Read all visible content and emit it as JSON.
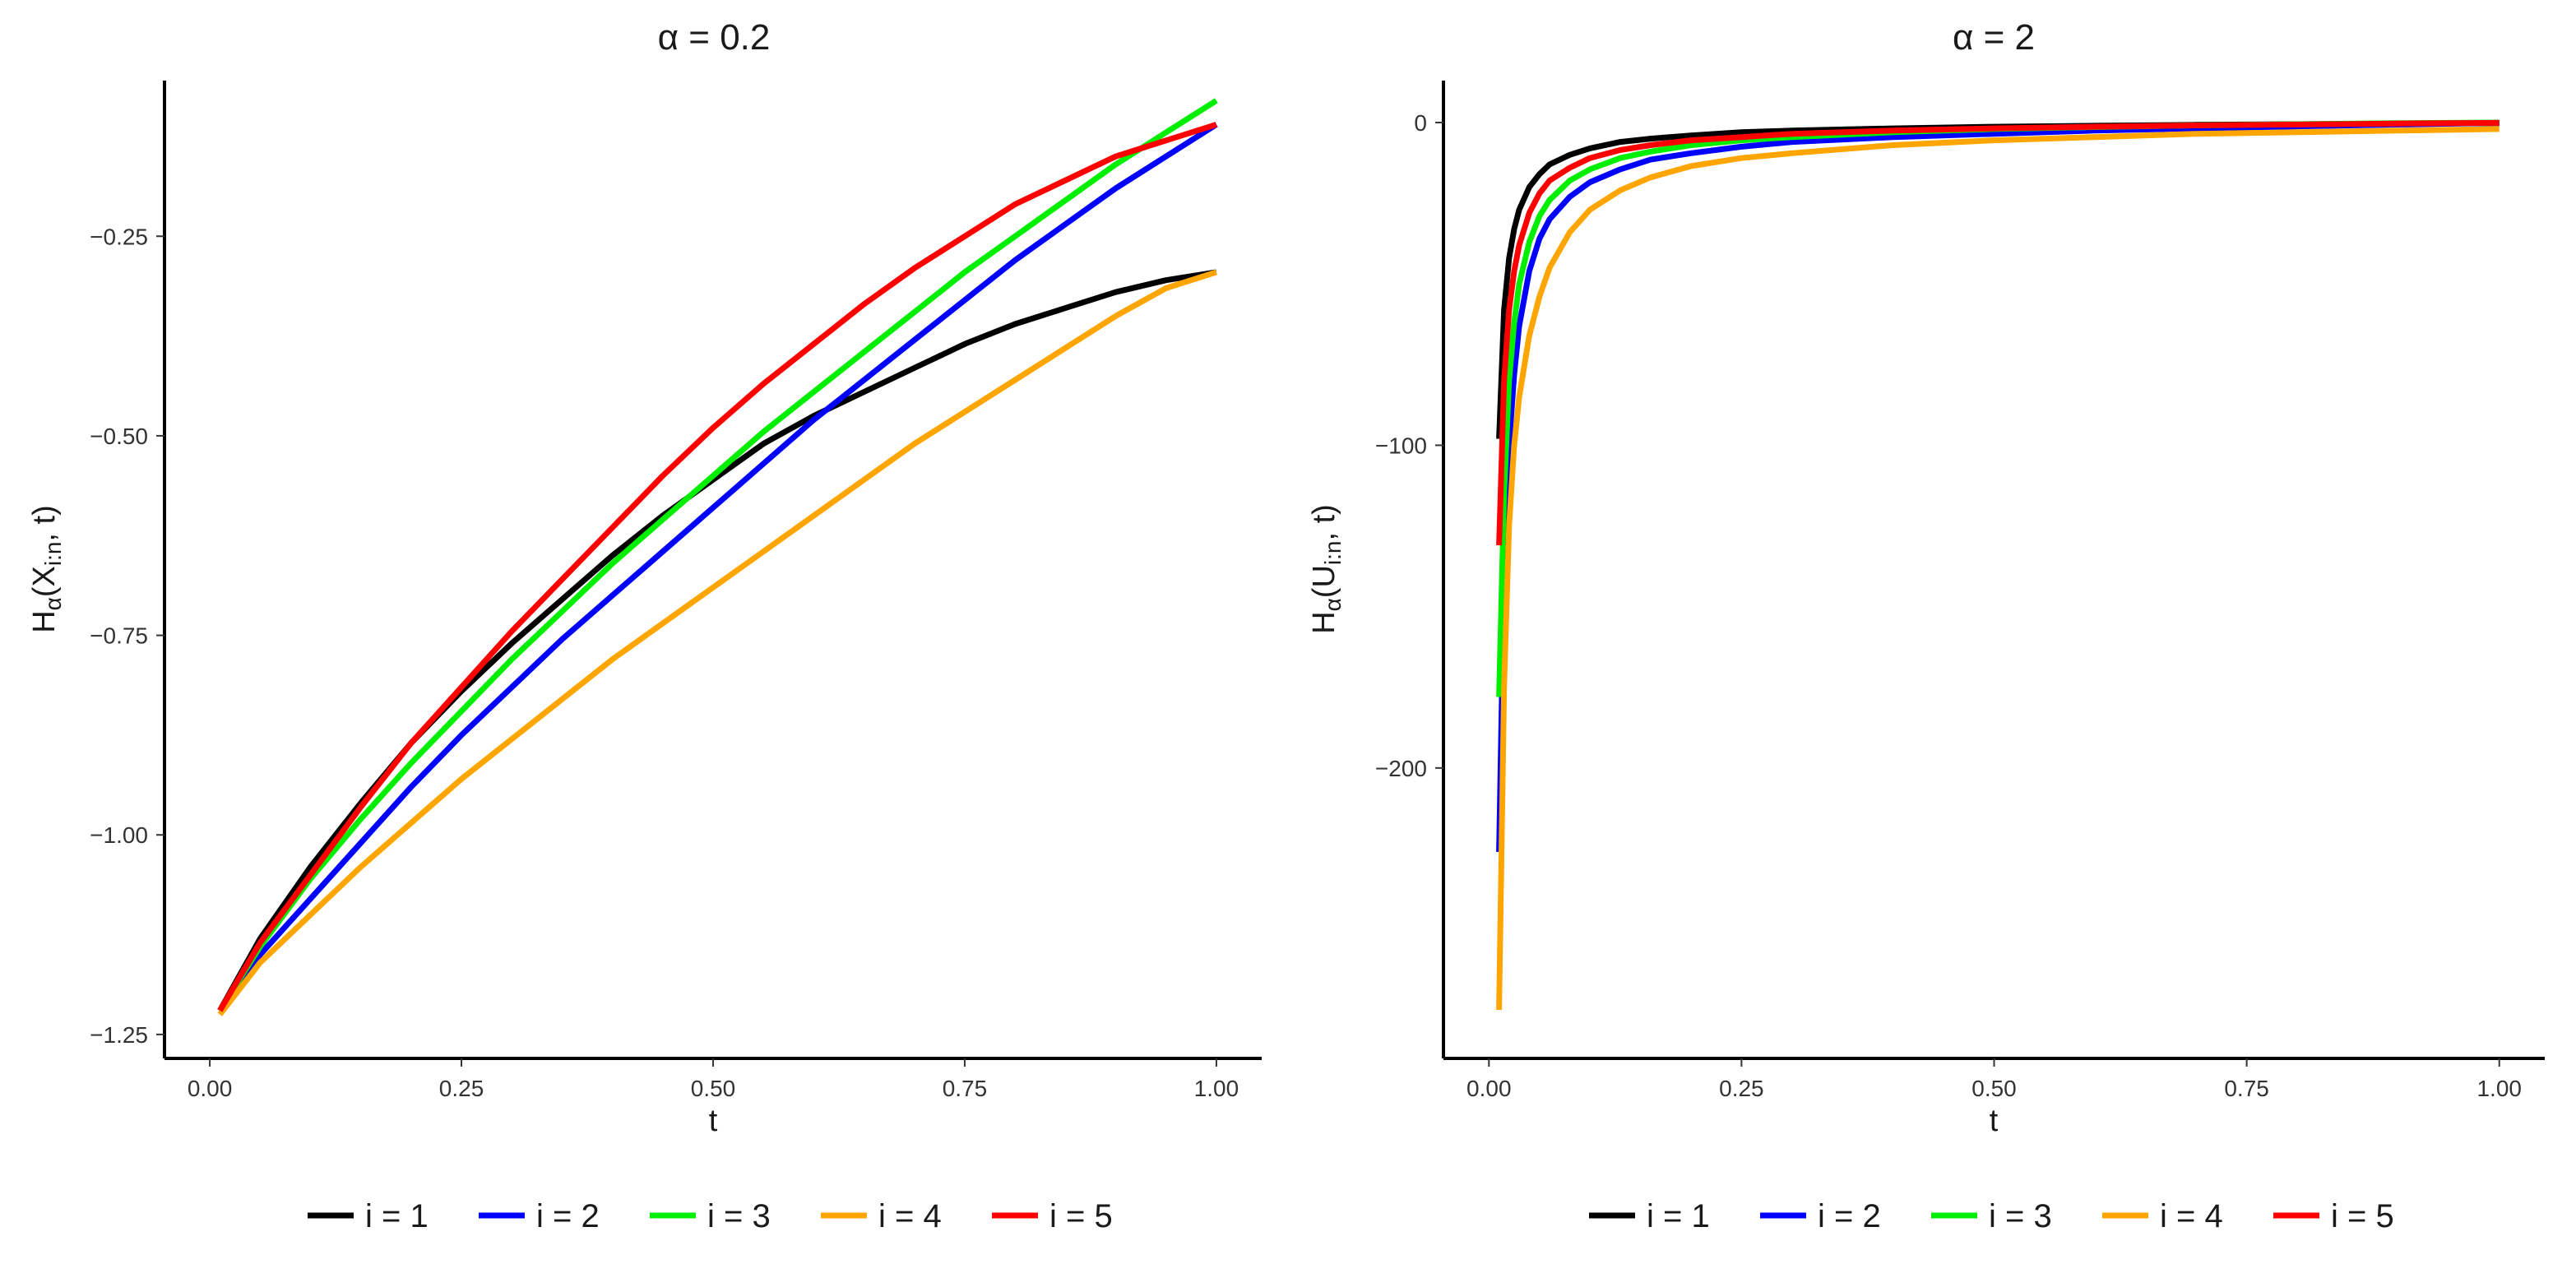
{
  "chart_data": [
    {
      "type": "line",
      "title": "α = 0.2",
      "xlabel": "t",
      "ylabel": "Hα(Xi:n, t)",
      "ylabel_parts": {
        "main": "H",
        "sub1": "α",
        "open": "(X",
        "sub2": "i:n",
        "rest": ", t)"
      },
      "xlim": [
        -0.045,
        1.045
      ],
      "ylim": [
        -1.28,
        -0.055
      ],
      "x_ticks": [
        0.0,
        0.25,
        0.5,
        0.75,
        1.0
      ],
      "x_tick_labels": [
        "0.00",
        "0.25",
        "0.50",
        "0.75",
        "1.00"
      ],
      "y_ticks": [
        -1.25,
        -1.0,
        -0.75,
        -0.5,
        -0.25
      ],
      "y_tick_labels": [
        "−1.25",
        "−1.00",
        "−0.75",
        "−0.50",
        "−0.25"
      ],
      "x": [
        0.01,
        0.05,
        0.1,
        0.15,
        0.2,
        0.25,
        0.3,
        0.35,
        0.4,
        0.45,
        0.5,
        0.55,
        0.6,
        0.65,
        0.7,
        0.75,
        0.8,
        0.85,
        0.9,
        0.95,
        1.0
      ],
      "series": [
        {
          "name": "i = 1",
          "color": "#000000",
          "values": [
            -1.22,
            -1.13,
            -1.04,
            -0.96,
            -0.885,
            -0.82,
            -0.76,
            -0.705,
            -0.65,
            -0.6,
            -0.555,
            -0.51,
            -0.475,
            -0.445,
            -0.415,
            -0.385,
            -0.36,
            -0.34,
            -0.32,
            -0.305,
            -0.295
          ]
        },
        {
          "name": "i = 2",
          "color": "#0000ff",
          "values": [
            -1.22,
            -1.15,
            -1.08,
            -1.01,
            -0.94,
            -0.875,
            -0.815,
            -0.755,
            -0.7,
            -0.645,
            -0.59,
            -0.535,
            -0.48,
            -0.43,
            -0.38,
            -0.33,
            -0.28,
            -0.235,
            -0.19,
            -0.15,
            -0.11
          ]
        },
        {
          "name": "i = 3",
          "color": "#00ee00",
          "values": [
            -1.22,
            -1.14,
            -1.055,
            -0.98,
            -0.91,
            -0.845,
            -0.78,
            -0.72,
            -0.66,
            -0.605,
            -0.55,
            -0.495,
            -0.445,
            -0.395,
            -0.345,
            -0.295,
            -0.25,
            -0.205,
            -0.16,
            -0.12,
            -0.08
          ]
        },
        {
          "name": "i = 4",
          "color": "#ffa500",
          "values": [
            -1.225,
            -1.16,
            -1.1,
            -1.04,
            -0.985,
            -0.93,
            -0.88,
            -0.83,
            -0.78,
            -0.735,
            -0.69,
            -0.645,
            -0.6,
            -0.555,
            -0.51,
            -0.47,
            -0.43,
            -0.39,
            -0.35,
            -0.315,
            -0.295
          ]
        },
        {
          "name": "i = 5",
          "color": "#ff0000",
          "values": [
            -1.22,
            -1.135,
            -1.05,
            -0.965,
            -0.885,
            -0.815,
            -0.745,
            -0.68,
            -0.615,
            -0.55,
            -0.49,
            -0.435,
            -0.385,
            -0.335,
            -0.29,
            -0.25,
            -0.21,
            -0.18,
            -0.15,
            -0.13,
            -0.11
          ]
        }
      ]
    },
    {
      "type": "line",
      "title": "α = 2",
      "xlabel": "t",
      "ylabel": "Hα(Ui:n, t)",
      "ylabel_parts": {
        "main": "H",
        "sub1": "α",
        "open": "(U",
        "sub2": "i:n",
        "rest": ", t)"
      },
      "xlim": [
        -0.045,
        1.045
      ],
      "ylim": [
        -290,
        13
      ],
      "x_ticks": [
        0.0,
        0.25,
        0.5,
        0.75,
        1.0
      ],
      "x_tick_labels": [
        "0.00",
        "0.25",
        "0.50",
        "0.75",
        "1.00"
      ],
      "y_ticks": [
        -200,
        -100,
        0
      ],
      "y_tick_labels": [
        "−200",
        "−100",
        "0"
      ],
      "x": [
        0.01,
        0.015,
        0.02,
        0.025,
        0.03,
        0.04,
        0.05,
        0.06,
        0.08,
        0.1,
        0.13,
        0.16,
        0.2,
        0.25,
        0.3,
        0.4,
        0.5,
        0.6,
        0.7,
        0.8,
        0.9,
        1.0
      ],
      "series": [
        {
          "name": "i = 1",
          "color": "#000000",
          "values": [
            -98,
            -58,
            -42,
            -33,
            -27,
            -20,
            -16,
            -13,
            -10,
            -8,
            -6,
            -5,
            -4,
            -3,
            -2.5,
            -1.8,
            -1.3,
            -1,
            -0.7,
            -0.5,
            -0.3,
            -0.2
          ]
        },
        {
          "name": "i = 2",
          "color": "#0000ff",
          "values": [
            -226,
            -140,
            -100,
            -78,
            -63,
            -46,
            -36,
            -30,
            -23,
            -18.5,
            -14.5,
            -11.5,
            -9.5,
            -7.5,
            -6,
            -4.5,
            -3.5,
            -2.5,
            -1.8,
            -1.2,
            -0.6,
            -0.1
          ]
        },
        {
          "name": "i = 3",
          "color": "#00ee00",
          "values": [
            -178,
            -115,
            -80,
            -62,
            -50,
            -37,
            -29,
            -24,
            -18,
            -14.5,
            -11,
            -9,
            -7,
            -5.5,
            -4.5,
            -3,
            -2,
            -1.4,
            -0.9,
            -0.5,
            -0.2,
            0
          ]
        },
        {
          "name": "i = 4",
          "color": "#ffa500",
          "values": [
            -275,
            -175,
            -125,
            -100,
            -85,
            -66,
            -54,
            -45,
            -34,
            -27,
            -21,
            -17,
            -13.5,
            -11,
            -9.5,
            -7,
            -5.5,
            -4.5,
            -3.5,
            -3,
            -2.5,
            -2
          ]
        },
        {
          "name": "i = 5",
          "color": "#ff0000",
          "values": [
            -131,
            -80,
            -58,
            -46,
            -38,
            -28,
            -22,
            -18,
            -14,
            -11,
            -8.5,
            -7,
            -5.5,
            -4.5,
            -3.5,
            -2.5,
            -1.8,
            -1.3,
            -0.9,
            -0.6,
            -0.3,
            -0.1
          ]
        }
      ]
    }
  ],
  "legend": {
    "items": [
      {
        "label": "i = 1",
        "color": "#000000"
      },
      {
        "label": "i = 2",
        "color": "#0000ff"
      },
      {
        "label": "i = 3",
        "color": "#00ee00"
      },
      {
        "label": "i = 4",
        "color": "#ffa500"
      },
      {
        "label": "i = 5",
        "color": "#ff0000"
      }
    ]
  }
}
